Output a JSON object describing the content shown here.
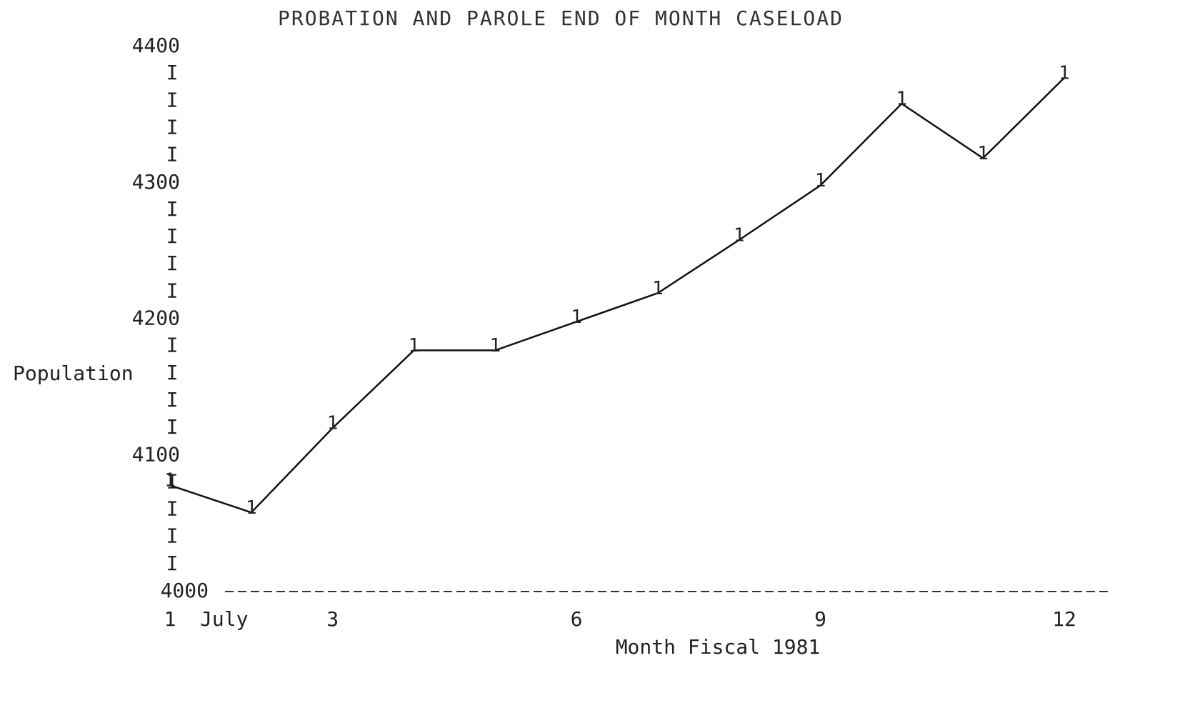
{
  "chart_data": {
    "type": "line",
    "title": "PROBATION AND PAROLE END OF MONTH CASELOAD",
    "x_label": "Month Fiscal 1981",
    "y_label": "Population",
    "x_annotation": "July",
    "x": [
      1,
      2,
      3,
      4,
      5,
      6,
      7,
      8,
      9,
      10,
      11,
      12
    ],
    "series": [
      {
        "name": "1",
        "color": "#111111",
        "values": [
          4078,
          4058,
          4120,
          4177,
          4177,
          4198,
          4219,
          4258,
          4298,
          4358,
          4318,
          4377
        ]
      }
    ],
    "xlim": [
      1,
      12
    ],
    "xticks": [
      1,
      3,
      6,
      9,
      12
    ],
    "ylim": [
      4000,
      4400
    ],
    "yticks": [
      4000,
      4100,
      4200,
      4300,
      4400
    ],
    "y_minor_ticks": [
      4020,
      4040,
      4060,
      4080,
      4120,
      4140,
      4160,
      4180,
      4220,
      4240,
      4260,
      4280,
      4320,
      4340,
      4360,
      4380
    ],
    "y_minor_tick_symbol": "I"
  }
}
